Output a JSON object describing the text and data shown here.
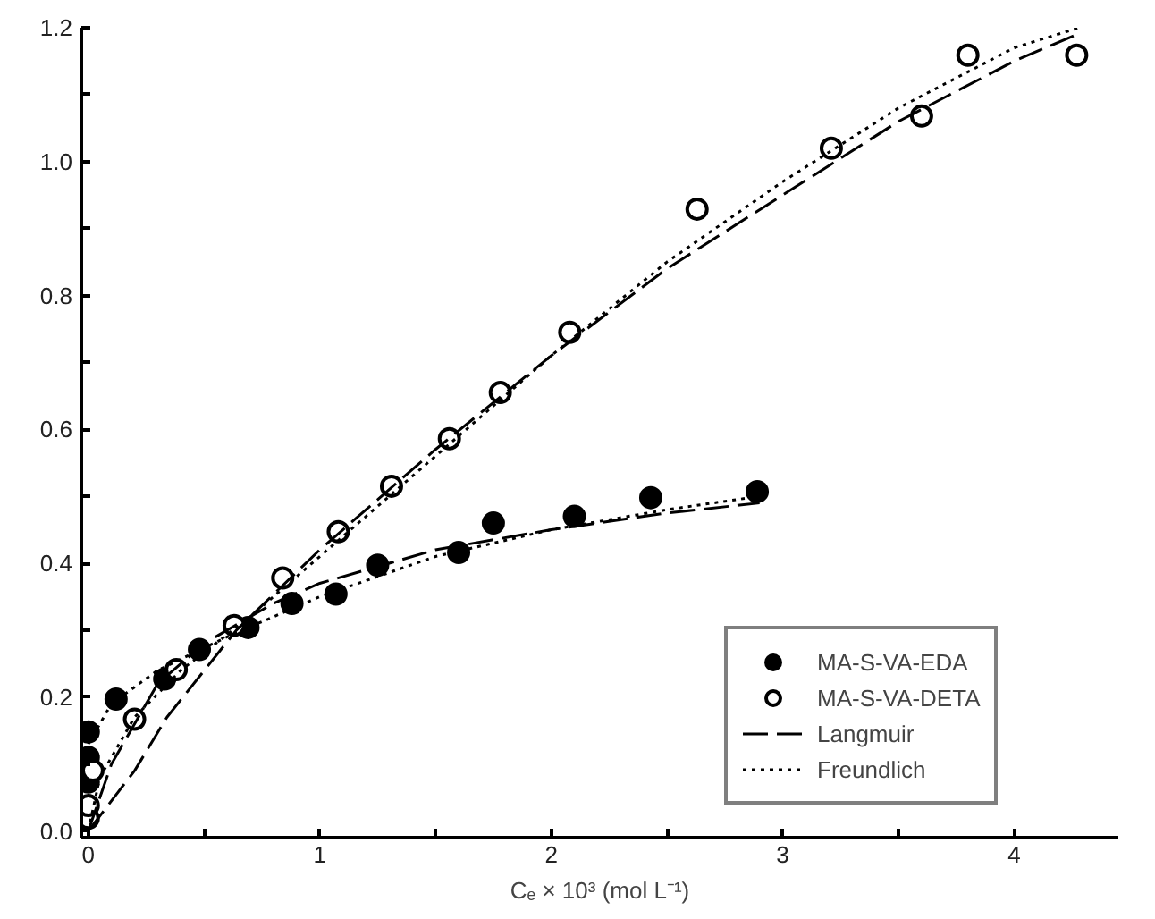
{
  "chart_data": {
    "type": "scatter",
    "xlabel": "Cₑ × 10³ (mol L⁻¹)",
    "xlim": [
      -0.03,
      4.45
    ],
    "ylim": [
      -0.01,
      1.2
    ],
    "xticks": [
      0,
      {
        "value": 0.5,
        "label": null
      },
      1,
      {
        "value": 1.5,
        "label": null
      },
      2,
      {
        "value": 2.5,
        "label": null
      },
      3,
      {
        "value": 3.5,
        "label": null
      },
      4
    ],
    "yticks": [
      {
        "value": 0,
        "label": "0.0"
      },
      {
        "value": 0.1,
        "label": null
      },
      0.2,
      {
        "value": 0.3,
        "label": null
      },
      0.4,
      {
        "value": 0.5,
        "label": null
      },
      0.6,
      {
        "value": 0.7,
        "label": null
      },
      0.8,
      {
        "value": 0.9,
        "label": null
      },
      {
        "value": 1.0,
        "label": "1.0"
      },
      {
        "value": 1.1,
        "label": null
      },
      1.2
    ],
    "grid": false,
    "legend": "bottom right",
    "series": [
      {
        "name": "MA-S-VA-EDA",
        "marker": "circle",
        "color": "#000000",
        "x": [
          0,
          0,
          0,
          0.12,
          0.33,
          0.48,
          0.69,
          0.88,
          1.07,
          1.25,
          1.6,
          1.75,
          2.1,
          2.43,
          2.89
        ],
        "values": [
          0.148,
          0.11,
          0.073,
          0.197,
          0.227,
          0.271,
          0.304,
          0.34,
          0.354,
          0.397,
          0.416,
          0.46,
          0.47,
          0.498,
          0.507
        ]
      },
      {
        "name": "MA-S-VA-DETA",
        "marker": "circle",
        "color": "#ffffff",
        "x": [
          0,
          0,
          0.02,
          0.2,
          0.38,
          0.63,
          0.84,
          1.08,
          1.31,
          1.56,
          1.78,
          2.08,
          2.63,
          3.21,
          3.6,
          3.8,
          4.27
        ],
        "values": [
          0.019,
          0.038,
          0.09,
          0.167,
          0.241,
          0.307,
          0.378,
          0.447,
          0.515,
          0.586,
          0.655,
          0.745,
          0.929,
          1.02,
          1.068,
          1.159,
          1.159
        ]
      },
      {
        "name": "Langmuir",
        "type": "line",
        "line_style": "dashed",
        "color": "#000000",
        "x": [
          0,
          0.2,
          0.34,
          0.64,
          1.0,
          1.5,
          2.0,
          2.5,
          3.0,
          3.5,
          4.0,
          4.27
        ],
        "values": [
          0,
          0.09,
          0.17,
          0.3,
          0.42,
          0.57,
          0.71,
          0.84,
          0.95,
          1.06,
          1.15,
          1.19
        ]
      },
      {
        "name": "Freundlich",
        "type": "line",
        "line_style": "dotted",
        "color": "#000000",
        "x": [
          0,
          0.05,
          0.2,
          0.4,
          0.7,
          1.0,
          1.5,
          2.0,
          2.5,
          3.0,
          3.5,
          4.0,
          4.28
        ],
        "values": [
          0,
          0.08,
          0.17,
          0.24,
          0.32,
          0.41,
          0.56,
          0.71,
          0.85,
          0.97,
          1.08,
          1.17,
          1.2
        ]
      },
      {
        "type": "line",
        "line_style": "dashed",
        "color": "#000000",
        "x": [
          0,
          0.1,
          0.3,
          0.5,
          0.8,
          1.0,
          1.5,
          2.0,
          2.5,
          2.9
        ],
        "values": [
          0,
          0.1,
          0.22,
          0.28,
          0.34,
          0.37,
          0.42,
          0.45,
          0.475,
          0.49
        ]
      },
      {
        "type": "line",
        "line_style": "dotted",
        "color": "#000000",
        "x": [
          0,
          0.1,
          0.3,
          0.6,
          1.0,
          1.5,
          2.0,
          2.5,
          2.9
        ],
        "values": [
          0.13,
          0.19,
          0.24,
          0.29,
          0.35,
          0.41,
          0.45,
          0.48,
          0.5
        ]
      }
    ]
  }
}
